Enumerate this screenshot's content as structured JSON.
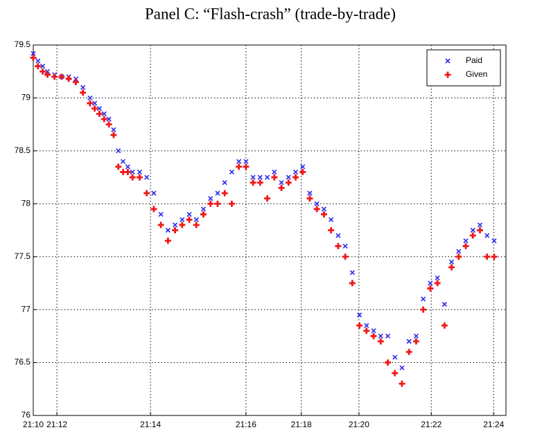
{
  "chart_data": {
    "type": "scatter",
    "title": "Panel C: “Flash-crash” (trade-by-trade)",
    "xlim": [
      0,
      1000
    ],
    "ylim": [
      76,
      79.5
    ],
    "xticks": [
      {
        "value": 0,
        "label": "21:10"
      },
      {
        "value": 50,
        "label": "21:12"
      },
      {
        "value": 248,
        "label": "21:14"
      },
      {
        "value": 450,
        "label": "21:16"
      },
      {
        "value": 567,
        "label": "21:18"
      },
      {
        "value": 689,
        "label": "21:20"
      },
      {
        "value": 842,
        "label": "21:22"
      },
      {
        "value": 974,
        "label": "21:24"
      }
    ],
    "yticks": [
      76,
      76.5,
      77,
      77.5,
      78,
      78.5,
      79,
      79.5
    ],
    "grid": true,
    "legend": "upper right",
    "series": [
      {
        "name": "Paid",
        "color": "#2a2af0",
        "marker": "x",
        "x": [
          0,
          10,
          20,
          30,
          45,
          60,
          75,
          90,
          105,
          120,
          130,
          140,
          150,
          160,
          170,
          180,
          190,
          200,
          210,
          225,
          240,
          255,
          270,
          285,
          300,
          315,
          330,
          345,
          360,
          375,
          390,
          405,
          420,
          435,
          450,
          465,
          480,
          495,
          510,
          525,
          540,
          555,
          570,
          585,
          600,
          615,
          630,
          645,
          660,
          675,
          690,
          705,
          720,
          735,
          750,
          765,
          780,
          795,
          810,
          825,
          840,
          855,
          870,
          885,
          900,
          915,
          930,
          945,
          960,
          975
        ],
        "values": [
          79.42,
          79.35,
          79.3,
          79.25,
          79.22,
          79.2,
          79.2,
          79.18,
          79.1,
          79.0,
          78.95,
          78.9,
          78.85,
          78.8,
          78.7,
          78.5,
          78.4,
          78.35,
          78.3,
          78.3,
          78.25,
          78.1,
          77.9,
          77.75,
          77.8,
          77.85,
          77.9,
          77.85,
          77.95,
          78.05,
          78.1,
          78.2,
          78.3,
          78.4,
          78.4,
          78.25,
          78.25,
          78.25,
          78.3,
          78.2,
          78.25,
          78.3,
          78.35,
          78.1,
          78.0,
          77.95,
          77.85,
          77.7,
          77.6,
          77.35,
          76.95,
          76.85,
          76.8,
          76.75,
          76.75,
          76.55,
          76.45,
          76.7,
          76.75,
          77.1,
          77.25,
          77.3,
          77.05,
          77.45,
          77.55,
          77.65,
          77.75,
          77.8,
          77.7,
          77.65
        ]
      },
      {
        "name": "Given",
        "color": "#f01818",
        "marker": "+",
        "x": [
          0,
          10,
          20,
          30,
          45,
          60,
          75,
          90,
          105,
          120,
          130,
          140,
          150,
          160,
          170,
          180,
          190,
          200,
          210,
          225,
          240,
          255,
          270,
          285,
          300,
          315,
          330,
          345,
          360,
          375,
          390,
          405,
          420,
          435,
          450,
          465,
          480,
          495,
          510,
          525,
          540,
          555,
          570,
          585,
          600,
          615,
          630,
          645,
          660,
          675,
          690,
          705,
          720,
          735,
          750,
          765,
          780,
          795,
          810,
          825,
          840,
          855,
          870,
          885,
          900,
          915,
          930,
          945,
          960,
          975
        ],
        "values": [
          79.38,
          79.3,
          79.25,
          79.22,
          79.2,
          79.2,
          79.18,
          79.15,
          79.05,
          78.95,
          78.9,
          78.85,
          78.8,
          78.75,
          78.65,
          78.35,
          78.3,
          78.3,
          78.25,
          78.25,
          78.1,
          77.95,
          77.8,
          77.65,
          77.75,
          77.8,
          77.85,
          77.8,
          77.9,
          78.0,
          78.0,
          78.1,
          78.0,
          78.35,
          78.35,
          78.2,
          78.2,
          78.05,
          78.25,
          78.15,
          78.2,
          78.25,
          78.3,
          78.05,
          77.95,
          77.9,
          77.75,
          77.6,
          77.5,
          77.25,
          76.85,
          76.8,
          76.75,
          76.7,
          76.5,
          76.4,
          76.3,
          76.6,
          76.7,
          77.0,
          77.2,
          77.25,
          76.85,
          77.4,
          77.5,
          77.6,
          77.7,
          77.75,
          77.5,
          77.5
        ]
      }
    ]
  }
}
